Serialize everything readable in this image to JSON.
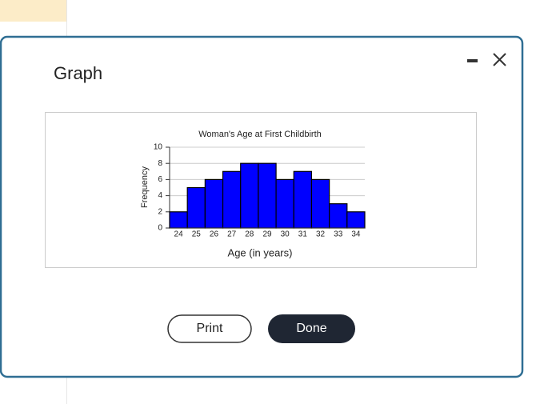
{
  "dialog": {
    "title": "Graph",
    "buttons": [
      "Print",
      "Done"
    ]
  },
  "chart_data": {
    "type": "bar",
    "title": "Woman's Age at First Childbirth",
    "x_label": "Age (in years)",
    "y_label": "Frequency",
    "categories": [
      "24",
      "25",
      "26",
      "27",
      "28",
      "29",
      "30",
      "31",
      "32",
      "33",
      "34"
    ],
    "values": [
      2,
      5,
      6,
      7,
      8,
      8,
      6,
      7,
      6,
      3,
      2
    ],
    "color": "#0000ff",
    "ylim": [
      0,
      10
    ],
    "yticks": [
      0,
      2,
      4,
      6,
      8,
      10
    ],
    "grid": true
  }
}
